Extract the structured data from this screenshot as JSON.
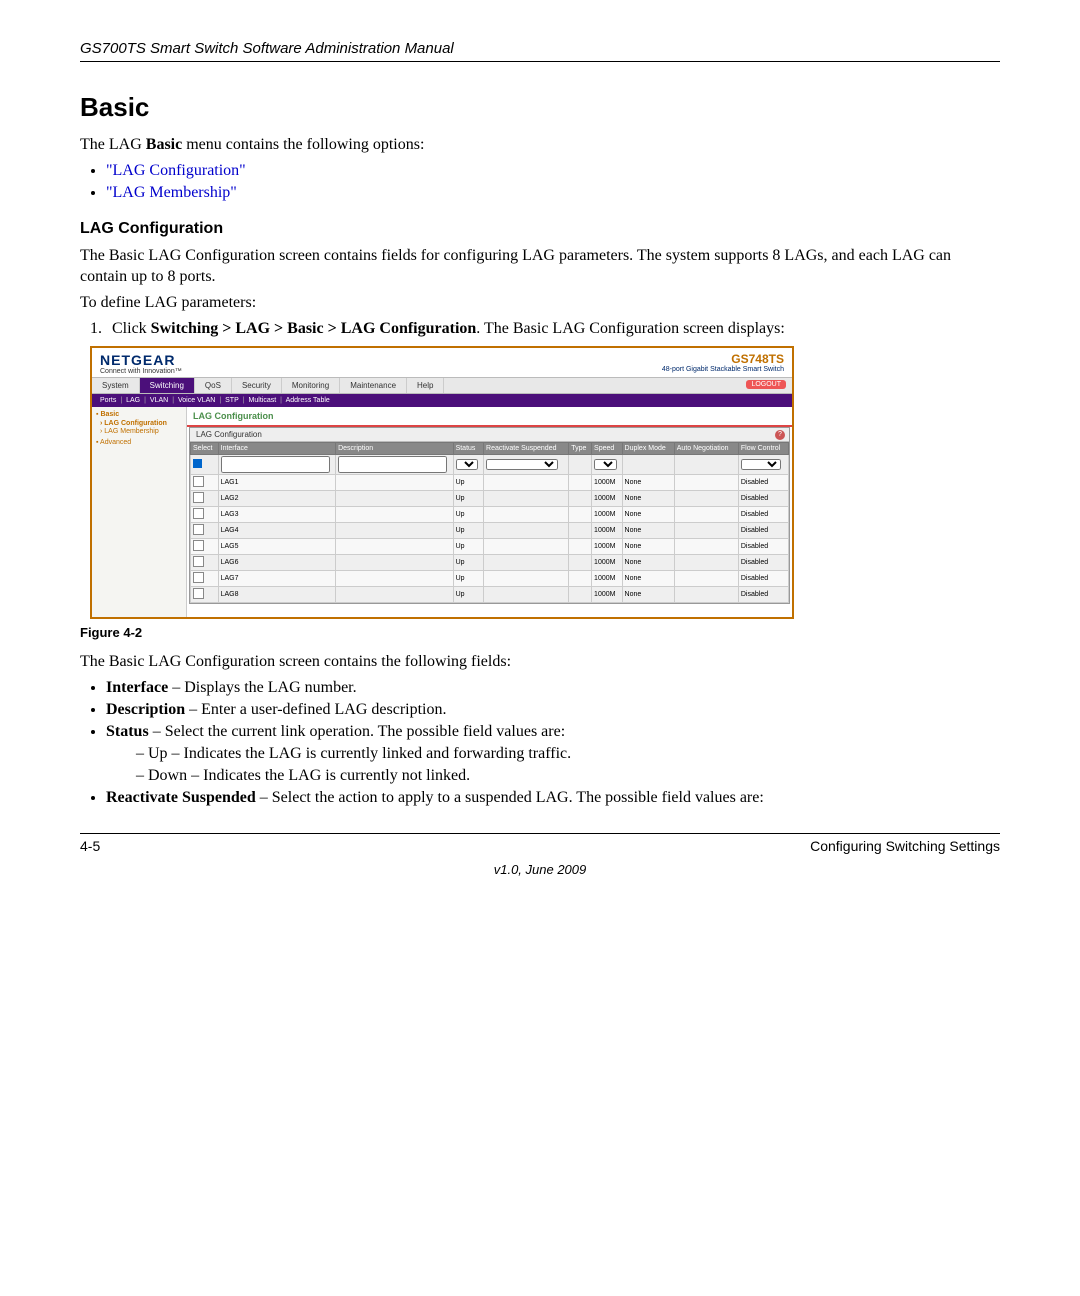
{
  "header": "GS700TS Smart Switch Software Administration Manual",
  "title": "Basic",
  "intro_pre": "The LAG ",
  "intro_bold": "Basic",
  "intro_post": " menu contains the following options:",
  "links": {
    "lag_config": "\"LAG Configuration\"",
    "lag_membership": "\"LAG Membership\""
  },
  "section_heading": "LAG Configuration",
  "section_para": "The Basic LAG Configuration screen contains fields for configuring LAG parameters. The system supports 8 LAGs, and each LAG can contain up to 8 ports.",
  "define": "To define LAG parameters:",
  "step1_pre": "Click ",
  "step1_bold": "Switching > LAG > Basic > LAG Configuration",
  "step1_post": ". The Basic LAG Configuration screen displays:",
  "figure_caption": "Figure 4-2",
  "para_after": "The Basic LAG Configuration screen contains the following fields:",
  "fields": {
    "interface": {
      "name": "Interface",
      "desc": " – Displays the LAG number."
    },
    "description": {
      "name": "Description",
      "desc": " – Enter a user-defined LAG description."
    },
    "status": {
      "name": "Status",
      "desc": " – Select the current link operation. The possible field values are:",
      "sub": {
        "up": "Up – Indicates the LAG is currently linked and forwarding traffic.",
        "down": "Down – Indicates the LAG is currently not linked."
      }
    },
    "reactivate": {
      "name": "Reactivate Suspended",
      "desc": " – Select the action to apply to a suspended LAG. The possible field values are:"
    }
  },
  "footer": {
    "left": "4-5",
    "right": "Configuring Switching Settings",
    "version": "v1.0, June 2009"
  },
  "screenshot": {
    "logo": "NETGEAR",
    "logo_sub": "Connect with Innovation™",
    "model": "GS748TS",
    "model_desc": "48-port Gigabit Stackable Smart Switch",
    "tabs": [
      "System",
      "Switching",
      "QoS",
      "Security",
      "Monitoring",
      "Maintenance",
      "Help"
    ],
    "active_tab": "Switching",
    "logout": "LOGOUT",
    "subtabs": [
      "Ports",
      "LAG",
      "VLAN",
      "Voice VLAN",
      "STP",
      "Multicast",
      "Address Table"
    ],
    "side": {
      "group": "Basic",
      "items": [
        "LAG Configuration",
        "LAG Membership"
      ],
      "advanced": "Advanced"
    },
    "panel_title": "LAG Configuration",
    "inner_title": "LAG Configuration",
    "columns": [
      "Select",
      "Interface",
      "Description",
      "Status",
      "Reactivate Suspended",
      "Type",
      "Speed",
      "Duplex Mode",
      "Auto Negotiation",
      "Flow Control"
    ],
    "rows": [
      {
        "iface": "LAG1",
        "status": "Up",
        "speed": "1000M",
        "duplex": "None",
        "flow": "Disabled"
      },
      {
        "iface": "LAG2",
        "status": "Up",
        "speed": "1000M",
        "duplex": "None",
        "flow": "Disabled"
      },
      {
        "iface": "LAG3",
        "status": "Up",
        "speed": "1000M",
        "duplex": "None",
        "flow": "Disabled"
      },
      {
        "iface": "LAG4",
        "status": "Up",
        "speed": "1000M",
        "duplex": "None",
        "flow": "Disabled"
      },
      {
        "iface": "LAG5",
        "status": "Up",
        "speed": "1000M",
        "duplex": "None",
        "flow": "Disabled"
      },
      {
        "iface": "LAG6",
        "status": "Up",
        "speed": "1000M",
        "duplex": "None",
        "flow": "Disabled"
      },
      {
        "iface": "LAG7",
        "status": "Up",
        "speed": "1000M",
        "duplex": "None",
        "flow": "Disabled"
      },
      {
        "iface": "LAG8",
        "status": "Up",
        "speed": "1000M",
        "duplex": "None",
        "flow": "Disabled"
      }
    ]
  }
}
